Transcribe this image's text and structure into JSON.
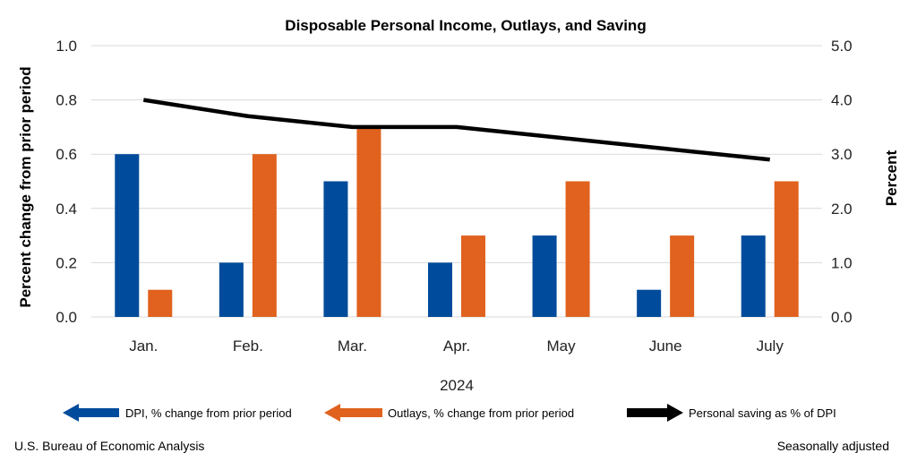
{
  "chart_data": {
    "type": "bar",
    "title": "Disposable Personal Income, Outlays, and Saving",
    "categories": [
      "Jan.",
      "Feb.",
      "Mar.",
      "Apr.",
      "May",
      "June",
      "July"
    ],
    "x_group_label": "2024",
    "series": [
      {
        "name": "DPI, % change from prior period",
        "kind": "bar",
        "axis": "left",
        "color": "#004b9b",
        "values": [
          0.6,
          0.2,
          0.5,
          0.2,
          0.3,
          0.1,
          0.3
        ]
      },
      {
        "name": "Outlays, % change from prior period",
        "kind": "bar",
        "axis": "left",
        "color": "#e0621e",
        "values": [
          0.1,
          0.6,
          0.7,
          0.3,
          0.5,
          0.3,
          0.5
        ]
      },
      {
        "name": "Personal saving as % of DPI",
        "kind": "line",
        "axis": "right",
        "color": "#000000",
        "values": [
          4.0,
          3.7,
          3.5,
          3.5,
          3.3,
          3.1,
          2.9
        ]
      }
    ],
    "y_left": {
      "label": "Percent change from prior period",
      "ylim": [
        0,
        1.0
      ],
      "ticks": [
        "0.0",
        "0.2",
        "0.4",
        "0.6",
        "0.8",
        "1.0"
      ]
    },
    "y_right": {
      "label": "Percent",
      "ylim": [
        0,
        5.0
      ],
      "ticks": [
        "0.0",
        "1.0",
        "2.0",
        "3.0",
        "4.0",
        "5.0"
      ]
    },
    "grid": true,
    "legend_position": "bottom"
  },
  "footer": {
    "source": "U.S. Bureau of Economic Analysis",
    "note": "Seasonally adjusted"
  }
}
